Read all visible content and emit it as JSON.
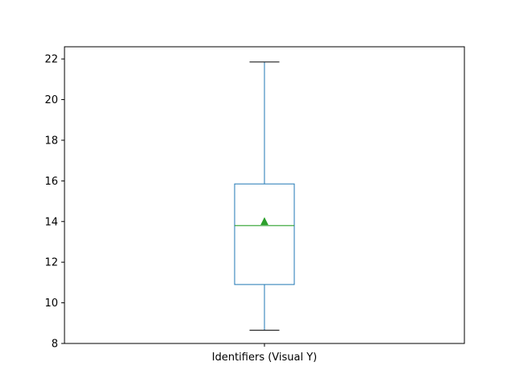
{
  "chart_data": {
    "type": "boxplot",
    "title": "",
    "categories": [
      "Identifiers (Visual Y)"
    ],
    "boxes": [
      {
        "category": "Identifiers (Visual Y)",
        "whisker_low": 8.65,
        "q1": 10.9,
        "median": 13.8,
        "mean": 14.0,
        "q3": 15.85,
        "whisker_high": 21.85
      }
    ],
    "xlabel": "",
    "ylabel": "",
    "ylim": [
      8,
      22.6
    ],
    "yticks": [
      8,
      10,
      12,
      14,
      16,
      18,
      20,
      22
    ],
    "ytick_labels": [
      "8",
      "10",
      "12",
      "14",
      "16",
      "18",
      "20",
      "22"
    ],
    "grid": false,
    "colors": {
      "box": "#1f77b4",
      "median": "#2ca02c",
      "mean_marker": "#2ca02c",
      "whisker": "#1f77b4",
      "cap": "#000000",
      "axes": "#000000"
    }
  }
}
